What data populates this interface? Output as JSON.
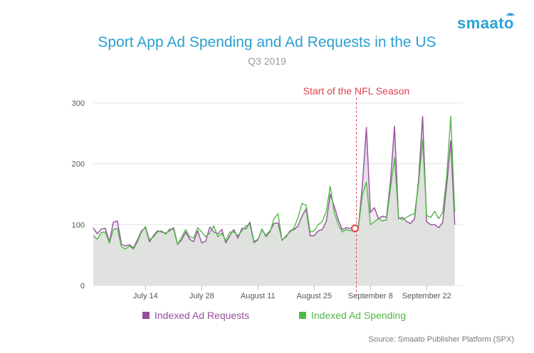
{
  "brand": {
    "name": "smaato"
  },
  "chart_data": {
    "type": "line",
    "title": "Sport App Ad Spending and Ad Requests in the US",
    "subtitle": "Q3 2019",
    "source": "Source: Smaato Publisher Platform (SPX)",
    "ylim": [
      0,
      300
    ],
    "yticks": [
      0,
      100,
      200,
      300
    ],
    "ytick_labels": [
      "0",
      "100",
      "200",
      "300"
    ],
    "xlim": [
      0,
      92
    ],
    "xticks": [
      {
        "day": 13,
        "label": "July 14"
      },
      {
        "day": 27,
        "label": "July 28"
      },
      {
        "day": 41,
        "label": "August 11"
      },
      {
        "day": 55,
        "label": "August 25"
      },
      {
        "day": 69,
        "label": "September 8"
      },
      {
        "day": 83,
        "label": "September 22"
      }
    ],
    "annotation": {
      "label": "Start of the NFL Season",
      "day": 65.5,
      "value": 94,
      "color": "#e0424e"
    },
    "colors": {
      "requests": "#94509c",
      "spending": "#52b848",
      "fill": "#dfe2de",
      "grid": "#e3e3e3"
    },
    "series": [
      {
        "name": "Indexed Ad Requests",
        "color": "#94509c",
        "values": [
          95,
          85,
          93,
          94,
          72,
          104,
          106,
          68,
          65,
          67,
          62,
          75,
          90,
          95,
          72,
          82,
          90,
          88,
          86,
          90,
          95,
          68,
          75,
          88,
          76,
          72,
          90,
          70,
          73,
          96,
          88,
          85,
          92,
          70,
          82,
          92,
          78,
          94,
          93,
          104,
          72,
          76,
          92,
          82,
          90,
          102,
          103,
          75,
          80,
          90,
          92,
          98,
          115,
          126,
          82,
          82,
          90,
          92,
          105,
          150,
          130,
          108,
          92,
          95,
          94,
          94,
          96,
          165,
          260,
          120,
          128,
          110,
          114,
          112,
          172,
          262,
          110,
          112,
          105,
          102,
          110,
          175,
          278,
          105,
          100,
          100,
          95,
          104,
          165,
          238,
          100
        ]
      },
      {
        "name": "Indexed Ad Spending",
        "color": "#52b848",
        "values": [
          82,
          76,
          87,
          88,
          70,
          92,
          94,
          64,
          60,
          65,
          60,
          72,
          88,
          97,
          75,
          80,
          88,
          90,
          84,
          93,
          92,
          67,
          80,
          92,
          80,
          78,
          95,
          88,
          80,
          86,
          98,
          80,
          86,
          74,
          88,
          88,
          82,
          90,
          98,
          100,
          70,
          75,
          93,
          80,
          88,
          110,
          118,
          74,
          82,
          88,
          95,
          112,
          135,
          132,
          88,
          90,
          100,
          105,
          122,
          163,
          120,
          100,
          88,
          92,
          90,
          92,
          95,
          150,
          170,
          100,
          105,
          110,
          106,
          108,
          160,
          210,
          112,
          108,
          112,
          116,
          118,
          168,
          240,
          115,
          112,
          122,
          110,
          120,
          180,
          278,
          120
        ]
      }
    ]
  }
}
